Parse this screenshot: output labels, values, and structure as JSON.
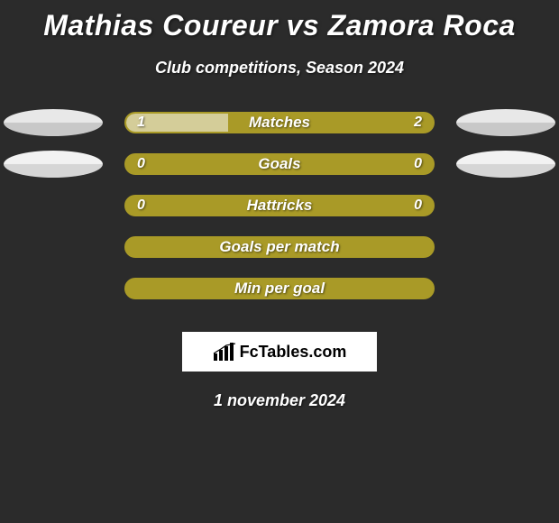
{
  "title": "Mathias Coureur vs Zamora Roca",
  "subtitle": "Club competitions, Season 2024",
  "date": "1 november 2024",
  "brand": "FcTables.com",
  "colors": {
    "background": "#2b2b2b",
    "bar_primary": "#a99a27",
    "bar_secondary": "#d4cd99",
    "text": "#ffffff",
    "badge_left_top": "#e8e8e8",
    "badge_left_bottom": "#d4d4d4",
    "badge_right_top": "#e8e8e8",
    "badge_right_bottom": "#d4d4d4"
  },
  "players": {
    "left": {
      "name": "Mathias Coureur"
    },
    "right": {
      "name": "Zamora Roca"
    }
  },
  "rows": [
    {
      "label": "Matches",
      "left_value": "1",
      "right_value": "2",
      "left_pct": 33.3,
      "right_pct": 66.7,
      "show_badges": true,
      "badge_left": {
        "top": "#e8e8e8",
        "bottom": "#c8c8c8"
      },
      "badge_right": {
        "top": "#e8e8e8",
        "bottom": "#c8c8c8"
      }
    },
    {
      "label": "Goals",
      "left_value": "0",
      "right_value": "0",
      "left_pct": 0,
      "right_pct": 100,
      "show_badges": true,
      "badge_left": {
        "top": "#f2f2f2",
        "bottom": "#d6d6d6"
      },
      "badge_right": {
        "top": "#f2f2f2",
        "bottom": "#d6d6d6"
      }
    },
    {
      "label": "Hattricks",
      "left_value": "0",
      "right_value": "0",
      "left_pct": 0,
      "right_pct": 100,
      "show_badges": false
    },
    {
      "label": "Goals per match",
      "left_value": "",
      "right_value": "",
      "left_pct": 0,
      "right_pct": 100,
      "show_badges": false
    },
    {
      "label": "Min per goal",
      "left_value": "",
      "right_value": "",
      "left_pct": 0,
      "right_pct": 100,
      "show_badges": false
    }
  ]
}
